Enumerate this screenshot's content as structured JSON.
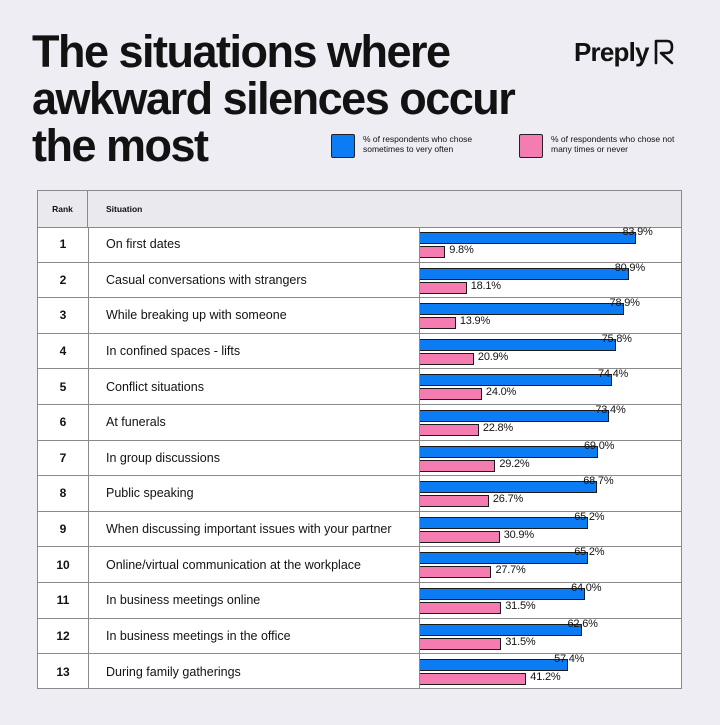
{
  "title": "The situations where awkward silences occur the most",
  "brand": "Preply",
  "colors": {
    "blue": "#0b7cf4",
    "pink": "#f47cb0",
    "background": "#ededf3"
  },
  "legend": {
    "blue": "% of respondents who chose sometimes to very often",
    "pink": "% of respondents who chose not many times or never"
  },
  "table": {
    "rank_header": "Rank",
    "situation_header": "Situation"
  },
  "chart_data": {
    "type": "bar",
    "orientation": "horizontal",
    "title": "The situations where awkward silences occur the most",
    "value_unit": "%",
    "xlim": [
      0,
      100
    ],
    "ranks": [
      "1",
      "2",
      "3",
      "4",
      "5",
      "6",
      "7",
      "8",
      "9",
      "10",
      "11",
      "12",
      "13"
    ],
    "categories": [
      "On first dates",
      "Casual conversations with strangers",
      "While breaking up with someone",
      "In confined spaces - lifts",
      "Conflict situations",
      "At funerals",
      "In group discussions",
      "Public speaking",
      "When discussing important issues with your partner",
      "Online/virtual communication at the workplace",
      "In business meetings online",
      "In business meetings in the office",
      "During family gatherings"
    ],
    "series": [
      {
        "name": "% of respondents who chose sometimes to very often",
        "color": "#0b7cf4",
        "values": [
          83.9,
          80.9,
          78.9,
          75.8,
          74.4,
          73.4,
          69.0,
          68.7,
          65.2,
          65.2,
          64.0,
          62.6,
          57.4
        ],
        "labels": [
          "83.9%",
          "80.9%",
          "78.9%",
          "75.8%",
          "74.4%",
          "73.4%",
          "69.0%",
          "68.7%",
          "65.2%",
          "65.2%",
          "64.0%",
          "62.6%",
          "57.4%"
        ]
      },
      {
        "name": "% of respondents who chose not many times or never",
        "color": "#f47cb0",
        "values": [
          9.8,
          18.1,
          13.9,
          20.9,
          24.0,
          22.8,
          29.2,
          26.7,
          30.9,
          27.7,
          31.5,
          31.5,
          41.2
        ],
        "labels": [
          "9.8%",
          "18.1%",
          "13.9%",
          "20.9%",
          "24.0%",
          "22.8%",
          "29.2%",
          "26.7%",
          "30.9%",
          "27.7%",
          "31.5%",
          "31.5%",
          "41.2%"
        ]
      }
    ]
  }
}
